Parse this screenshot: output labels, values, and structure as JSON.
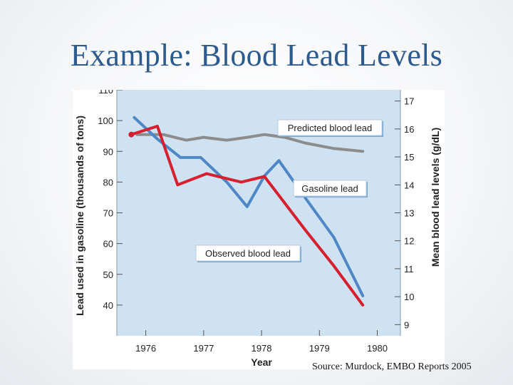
{
  "slide": {
    "title": "Example: Blood Lead Levels",
    "source": "Source: Murdock, EMBO Reports 2005"
  },
  "chart_data": {
    "type": "line",
    "title": "",
    "xlabel": "Year",
    "ylabel_left": "Lead used in gasoline (thousands of tons)",
    "ylabel_right": "Mean blood lead levels (g/dL)",
    "x_ticks": [
      1976,
      1977,
      1978,
      1979,
      1980
    ],
    "x_range": [
      1975.5,
      1980.4
    ],
    "y_left_ticks": [
      40,
      50,
      60,
      70,
      80,
      90,
      100,
      110
    ],
    "y_left_range": [
      30,
      110
    ],
    "y_right_ticks": [
      9,
      10,
      11,
      12,
      13,
      14,
      15,
      16,
      17
    ],
    "y_right_range": [
      8.6,
      17.4
    ],
    "grid": false,
    "colors": {
      "plot_background": "#cfe2f2",
      "gasoline": "#4f86c6",
      "observed": "#d6202f",
      "predicted": "#8c8c8c",
      "callout_border": "#7aa7d4"
    },
    "series": [
      {
        "name": "Gasoline lead",
        "axis": "left",
        "x": [
          1975.8,
          1976.2,
          1976.6,
          1976.95,
          1977.4,
          1977.75,
          1978.05,
          1978.3,
          1978.75,
          1979.25,
          1979.75
        ],
        "values": [
          101,
          94,
          88,
          88,
          80,
          72,
          82,
          87,
          75,
          62,
          43
        ]
      },
      {
        "name": "Observed blood lead",
        "axis": "right",
        "x": [
          1975.75,
          1976.2,
          1976.55,
          1977.05,
          1977.65,
          1978.05,
          1978.75,
          1979.25,
          1979.75
        ],
        "values": [
          15.8,
          16.1,
          14.0,
          14.4,
          14.1,
          14.3,
          12.4,
          11.1,
          9.7
        ]
      },
      {
        "name": "Predicted blood lead",
        "axis": "right",
        "x": [
          1975.85,
          1976.3,
          1976.7,
          1977.0,
          1977.4,
          1977.75,
          1978.05,
          1978.4,
          1978.75,
          1979.25,
          1979.75
        ],
        "values": [
          15.8,
          15.8,
          15.6,
          15.7,
          15.6,
          15.7,
          15.8,
          15.7,
          15.5,
          15.3,
          15.2
        ]
      }
    ],
    "annotations": [
      {
        "text": "Predicted blood lead",
        "series": "Predicted blood lead"
      },
      {
        "text": "Gasoline lead",
        "series": "Gasoline lead"
      },
      {
        "text": "Observed blood lead",
        "series": "Observed blood lead"
      }
    ]
  }
}
